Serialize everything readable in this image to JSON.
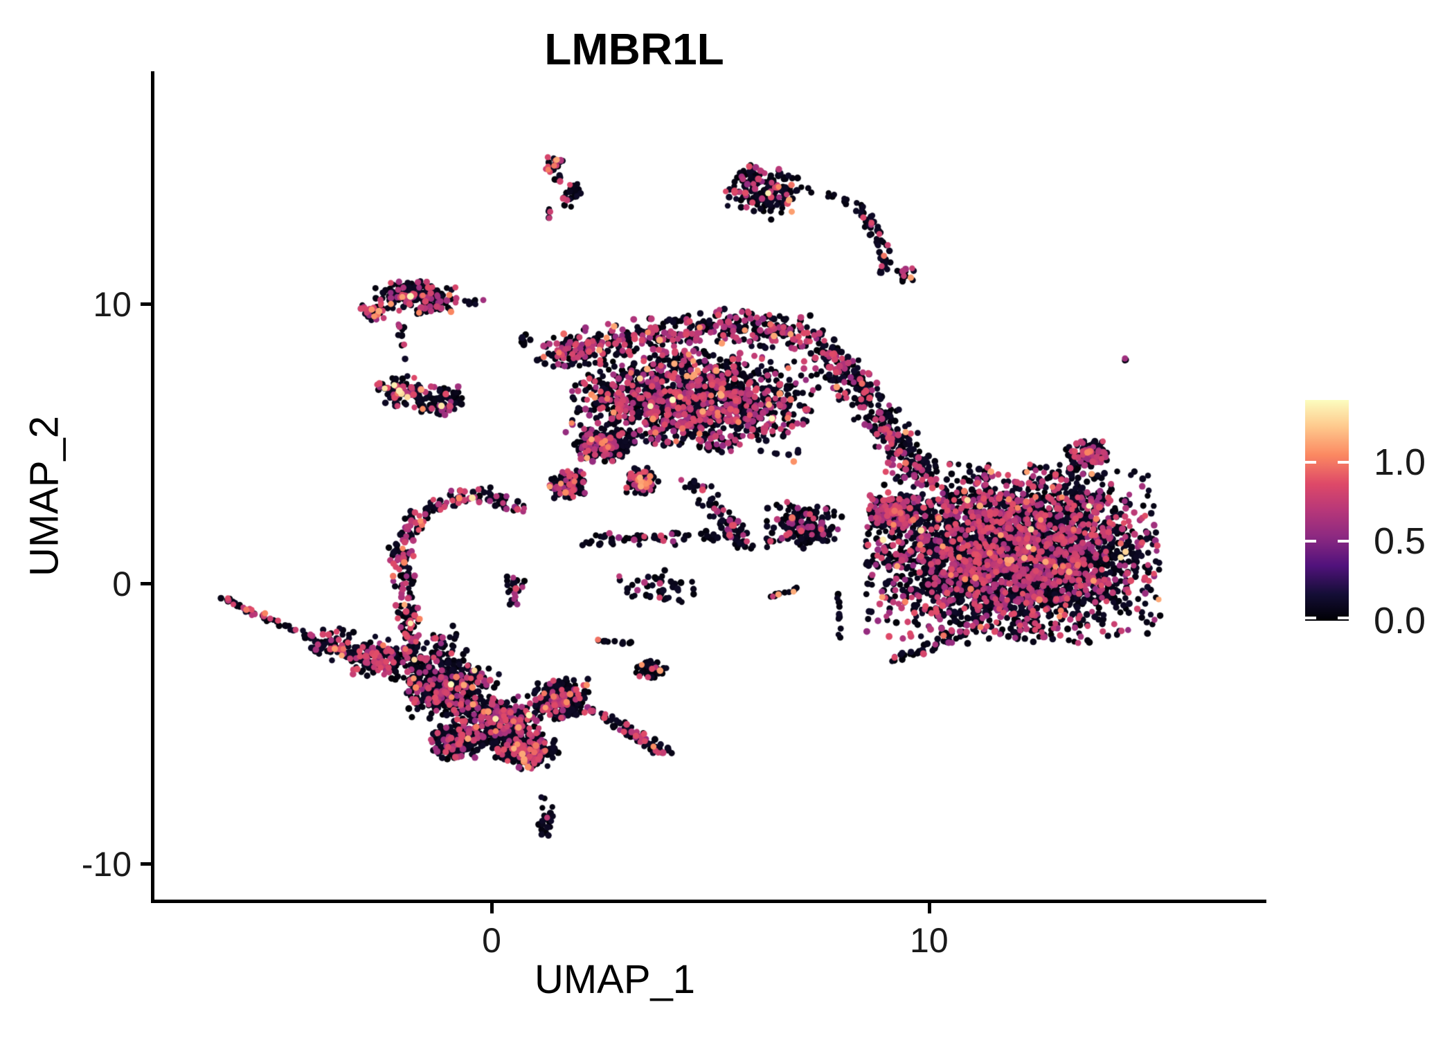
{
  "title": {
    "text": "LMBR1L"
  },
  "axes": {
    "x": {
      "label": "UMAP_1",
      "range": [
        -7.74,
        17.71
      ],
      "ticks": [
        {
          "value": 0,
          "label": "0"
        },
        {
          "value": 10,
          "label": "10"
        }
      ]
    },
    "y": {
      "label": "UMAP_2",
      "range": [
        -11.33,
        18.29
      ],
      "ticks": [
        {
          "value": 10,
          "label": "10"
        },
        {
          "value": 0,
          "label": "0"
        },
        {
          "value": -10,
          "label": "-10"
        }
      ]
    }
  },
  "legend": {
    "min": 0,
    "max": 1.39,
    "ticks": [
      {
        "value": 1.0,
        "label": "1.0"
      },
      {
        "value": 0.5,
        "label": "0.5"
      },
      {
        "value": 0.0,
        "label": "0.0"
      }
    ]
  },
  "chart_data": {
    "type": "scatter",
    "title": "LMBR1L",
    "xlabel": "UMAP_1",
    "ylabel": "UMAP_2",
    "x_range": [
      -7.74,
      17.71
    ],
    "y_range": [
      -11.33,
      18.29
    ],
    "grid": false,
    "legend_position": "right",
    "color_scale": {
      "name": "magma",
      "domain": [
        0,
        1.39
      ],
      "stops": [
        [
          0,
          "#000004"
        ],
        [
          0.12,
          "#140e36"
        ],
        [
          0.25,
          "#51127c"
        ],
        [
          0.38,
          "#8c2981"
        ],
        [
          0.5,
          "#b73779"
        ],
        [
          0.62,
          "#de4968"
        ],
        [
          0.75,
          "#fb8861"
        ],
        [
          0.88,
          "#fec98d"
        ],
        [
          1,
          "#fcfdbf"
        ]
      ]
    },
    "point_values": {
      "dark": [
        0,
        0.12
      ],
      "mid": [
        0.55,
        0.88
      ],
      "high": [
        0.95,
        1.15
      ],
      "top": [
        1.25,
        1.39
      ]
    },
    "clusters": [
      {
        "t": "g",
        "n": 26,
        "c": [
          1.42,
          14.87
        ],
        "s": [
          0.12,
          0.25
        ],
        "r": 0,
        "p": [
          0.25,
          0.04,
          0
        ]
      },
      {
        "t": "g",
        "n": 24,
        "c": [
          1.85,
          13.88
        ],
        "s": [
          0.11,
          0.22
        ],
        "r": 0,
        "p": [
          0.1,
          0,
          0
        ]
      },
      {
        "t": "g",
        "n": 7,
        "c": [
          1.33,
          13.18
        ],
        "s": [
          0.07,
          0.09
        ],
        "r": 0,
        "p": [
          0.1,
          0,
          0
        ]
      },
      {
        "t": "g",
        "n": 8,
        "c": [
          0.79,
          8.75
        ],
        "s": [
          0.07,
          0.12
        ],
        "r": 0,
        "p": [
          0,
          0,
          0
        ]
      },
      {
        "t": "g",
        "n": 170,
        "c": [
          6.22,
          14.03
        ],
        "s": [
          0.42,
          0.45
        ],
        "r": -15,
        "p": [
          0.17,
          0.02,
          0.004
        ]
      },
      {
        "t": "b",
        "n": 13,
        "path": [
          [
            6.96,
            14.15
          ],
          [
            8.39,
            13.51
          ]
        ],
        "w": 0.07,
        "p": [
          0.15,
          0,
          0
        ]
      },
      {
        "t": "b",
        "n": 55,
        "path": [
          [
            8.39,
            13.51
          ],
          [
            8.7,
            12.8
          ],
          [
            8.95,
            11.9
          ],
          [
            9.0,
            11.05
          ]
        ],
        "w": 0.09,
        "p": [
          0.1,
          0.02,
          0
        ]
      },
      {
        "t": "g",
        "n": 13,
        "c": [
          9.49,
          11.03
        ],
        "s": [
          0.12,
          0.12
        ],
        "r": 0,
        "p": [
          0.3,
          0.08,
          0
        ]
      },
      {
        "t": "g",
        "n": 200,
        "c": [
          -1.74,
          10.24
        ],
        "s": [
          0.45,
          0.28
        ],
        "r": -8,
        "p": [
          0.28,
          0.03,
          0.005
        ]
      },
      {
        "t": "g",
        "n": 32,
        "c": [
          -2.74,
          9.69
        ],
        "s": [
          0.14,
          0.15
        ],
        "r": 0,
        "p": [
          0.5,
          0.05,
          0
        ]
      },
      {
        "t": "b",
        "n": 9,
        "path": [
          [
            -0.87,
            10.1
          ],
          [
            -0.11,
            10.05
          ]
        ],
        "w": 0.06,
        "p": [
          0.12,
          0.12,
          0
        ]
      },
      {
        "t": "b",
        "n": 11,
        "path": [
          [
            -2.1,
            9.24
          ],
          [
            -1.98,
            7.88
          ]
        ],
        "w": 0.06,
        "p": [
          0.2,
          0,
          0
        ]
      },
      {
        "t": "g",
        "n": 85,
        "c": [
          -2.02,
          6.88
        ],
        "s": [
          0.3,
          0.28
        ],
        "r": 0,
        "p": [
          0.22,
          0.04,
          0.02
        ]
      },
      {
        "t": "g",
        "n": 80,
        "c": [
          -1.18,
          6.55
        ],
        "s": [
          0.3,
          0.25
        ],
        "r": 0,
        "p": [
          0.22,
          0.04,
          0.01
        ]
      },
      {
        "t": "b",
        "n": 280,
        "path": [
          [
            0.71,
            2.73
          ],
          [
            -0.16,
            3.2
          ],
          [
            -0.95,
            3.0
          ],
          [
            -1.66,
            2.35
          ],
          [
            -2.03,
            1.41
          ],
          [
            -2.09,
            0.82
          ],
          [
            -1.98,
            -0.42
          ],
          [
            -1.82,
            -1.83
          ],
          [
            -1.74,
            -3.27
          ]
        ],
        "w": 0.14,
        "p": [
          0.32,
          0.025,
          0.012
        ]
      },
      {
        "t": "g",
        "n": 26,
        "c": [
          0.55,
          -0.17
        ],
        "s": [
          0.12,
          0.28
        ],
        "r": 0,
        "p": [
          0.25,
          0,
          0
        ]
      },
      {
        "t": "b",
        "n": 75,
        "path": [
          [
            -6.17,
            -0.5
          ],
          [
            -4.75,
            -1.49
          ],
          [
            -3.16,
            -2.65
          ]
        ],
        "w": 0.06,
        "p": [
          0.22,
          0.06,
          0
        ]
      },
      {
        "t": "b",
        "n": 230,
        "path": [
          [
            -3.96,
            -2.03
          ],
          [
            -2.5,
            -2.6
          ],
          [
            -0.16,
            -3.64
          ]
        ],
        "w": 0.28,
        "p": [
          0.26,
          0.035,
          0.004
        ]
      },
      {
        "t": "g",
        "n": 90,
        "c": [
          -2.61,
          -2.78
        ],
        "s": [
          0.28,
          0.3
        ],
        "r": 0,
        "p": [
          0.3,
          0.02,
          0
        ]
      },
      {
        "t": "g",
        "n": 55,
        "c": [
          -1.03,
          -2.4
        ],
        "s": [
          0.3,
          0.45
        ],
        "r": 0,
        "p": [
          0.15,
          0.01,
          0
        ]
      },
      {
        "t": "g",
        "n": 280,
        "c": [
          -1.11,
          -3.89
        ],
        "s": [
          0.42,
          0.45
        ],
        "r": 0,
        "p": [
          0.22,
          0.02,
          0.003
        ]
      },
      {
        "t": "g",
        "n": 340,
        "c": [
          0.16,
          -4.88
        ],
        "s": [
          0.48,
          0.42
        ],
        "r": 0,
        "p": [
          0.25,
          0.025,
          0.003
        ]
      },
      {
        "t": "g",
        "n": 200,
        "c": [
          -0.79,
          -5.63
        ],
        "s": [
          0.3,
          0.3
        ],
        "r": 0,
        "p": [
          0.2,
          0.02,
          0
        ]
      },
      {
        "t": "g",
        "n": 240,
        "c": [
          0.79,
          -6.0
        ],
        "s": [
          0.36,
          0.3
        ],
        "r": 0,
        "p": [
          0.25,
          0.03,
          0.004
        ]
      },
      {
        "t": "g",
        "n": 200,
        "c": [
          1.58,
          -4.14
        ],
        "s": [
          0.3,
          0.36
        ],
        "r": 0,
        "p": [
          0.22,
          0.02,
          0
        ]
      },
      {
        "t": "b",
        "n": 70,
        "path": [
          [
            2.29,
            -4.51
          ],
          [
            4.03,
            -6.12
          ]
        ],
        "w": 0.12,
        "p": [
          0.3,
          0.05,
          0
        ]
      },
      {
        "t": "g",
        "n": 40,
        "c": [
          3.64,
          -3.02
        ],
        "s": [
          0.18,
          0.18
        ],
        "r": 0,
        "p": [
          0.15,
          0.04,
          0
        ]
      },
      {
        "t": "b",
        "n": 10,
        "path": [
          [
            2.37,
            -2.03
          ],
          [
            3.24,
            -2.11
          ]
        ],
        "w": 0.03,
        "p": [
          0.05,
          0.1,
          0
        ]
      },
      {
        "t": "g",
        "n": 22,
        "c": [
          1.23,
          -8.48
        ],
        "s": [
          0.08,
          0.3
        ],
        "r": 0,
        "p": [
          0.14,
          0,
          0
        ]
      },
      {
        "t": "g",
        "n": 2,
        "c": [
          1.19,
          -7.68
        ],
        "s": [
          0.03,
          0.03
        ],
        "r": 0,
        "p": [
          0,
          0,
          0
        ]
      },
      {
        "t": "b",
        "n": 430,
        "path": [
          [
            1.27,
            8.13
          ],
          [
            3.01,
            8.75
          ],
          [
            5.38,
            9.24
          ],
          [
            7.44,
            8.87
          ]
        ],
        "w": 0.3,
        "p": [
          0.32,
          0.03,
          0.004
        ]
      },
      {
        "t": "g",
        "n": 1400,
        "c": [
          4.59,
          6.57
        ],
        "s": [
          1.3,
          0.85
        ],
        "r": -10,
        "p": [
          0.3,
          0.025,
          0.004
        ]
      },
      {
        "t": "b",
        "n": 330,
        "path": [
          [
            7.44,
            8.5
          ],
          [
            8.31,
            7.0
          ],
          [
            9.18,
            5.3
          ],
          [
            9.81,
            3.79
          ]
        ],
        "w": 0.26,
        "p": [
          0.3,
          0.02,
          0
        ]
      },
      {
        "t": "g",
        "n": 220,
        "c": [
          2.53,
          4.91
        ],
        "s": [
          0.3,
          0.28
        ],
        "r": 0,
        "p": [
          0.25,
          0.02,
          0
        ]
      },
      {
        "t": "g",
        "n": 110,
        "c": [
          1.74,
          3.54
        ],
        "s": [
          0.2,
          0.24
        ],
        "r": 0,
        "p": [
          0.3,
          0.06,
          0
        ]
      },
      {
        "t": "g",
        "n": 90,
        "c": [
          3.45,
          3.67
        ],
        "s": [
          0.17,
          0.22
        ],
        "r": 0,
        "p": [
          0.22,
          0.08,
          0
        ]
      },
      {
        "t": "b",
        "n": 90,
        "path": [
          [
            4.59,
            3.67
          ],
          [
            5.25,
            2.5
          ],
          [
            5.85,
            1.31
          ]
        ],
        "w": 0.16,
        "p": [
          0.2,
          0.01,
          0
        ]
      },
      {
        "t": "g",
        "n": 170,
        "c": [
          7.12,
          2.06
        ],
        "s": [
          0.42,
          0.4
        ],
        "r": 0,
        "p": [
          0.25,
          0.015,
          0
        ]
      },
      {
        "t": "b",
        "n": 12,
        "path": [
          [
            6.38,
            -0.47
          ],
          [
            7.12,
            -0.12
          ]
        ],
        "w": 0.03,
        "p": [
          0.1,
          0.15,
          0
        ]
      },
      {
        "t": "b",
        "n": 12,
        "path": [
          [
            7.91,
            -0.17
          ],
          [
            7.96,
            -2.16
          ]
        ],
        "w": 0.02,
        "p": [
          0,
          0,
          0
        ]
      },
      {
        "t": "b",
        "n": 60,
        "path": [
          [
            2.06,
            1.51
          ],
          [
            3.5,
            1.62
          ],
          [
            5.06,
            1.69
          ]
        ],
        "w": 0.13,
        "p": [
          0.1,
          0,
          0
        ]
      },
      {
        "t": "g",
        "n": 45,
        "c": [
          3.8,
          -0.17
        ],
        "s": [
          0.55,
          0.3
        ],
        "r": 0,
        "p": [
          0.1,
          0,
          0
        ]
      },
      {
        "t": "g",
        "n": 3300,
        "c": [
          11.95,
          1.07
        ],
        "s": [
          1.58,
          1.49
        ],
        "r": 0,
        "p": [
          0.3,
          0.012,
          0.002
        ]
      },
      {
        "t": "g",
        "n": 260,
        "c": [
          9.18,
          2.55
        ],
        "s": [
          0.28,
          0.3
        ],
        "r": 0,
        "p": [
          0.3,
          0.01,
          0
        ]
      },
      {
        "t": "g",
        "n": 115,
        "c": [
          13.64,
          4.66
        ],
        "s": [
          0.24,
          0.23
        ],
        "r": 0,
        "p": [
          0.28,
          0.03,
          0.008
        ]
      },
      {
        "t": "b",
        "n": 10,
        "path": [
          [
            13.3,
            4.1
          ],
          [
            13.1,
            3.4
          ]
        ],
        "w": 0.1,
        "p": [
          0,
          0,
          0
        ]
      },
      {
        "t": "g",
        "n": 3,
        "c": [
          14.48,
          8.01
        ],
        "s": [
          0.03,
          0.03
        ],
        "r": 0,
        "p": [
          0.4,
          0,
          0
        ]
      },
      {
        "t": "b",
        "n": 45,
        "path": [
          [
            9.1,
            -2.78
          ],
          [
            10.84,
            -1.78
          ]
        ],
        "w": 0.1,
        "p": [
          0.12,
          0.04,
          0
        ]
      }
    ]
  }
}
